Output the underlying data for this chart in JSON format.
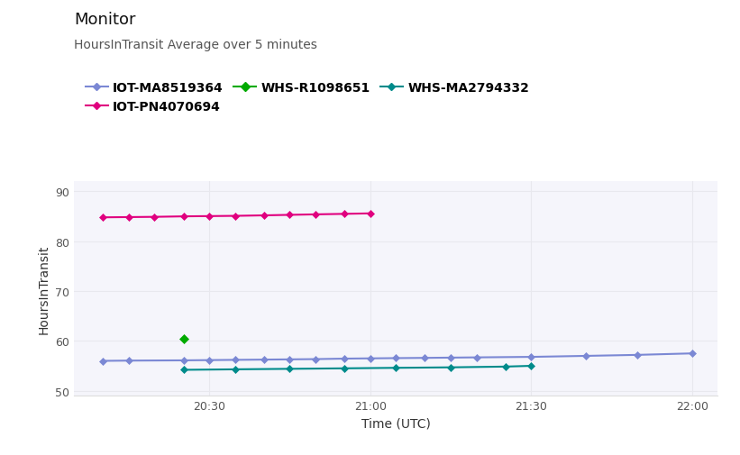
{
  "title": "Monitor",
  "subtitle": "HoursInTransit Average over 5 minutes",
  "xlabel": "Time (UTC)",
  "ylabel": "HoursInTransit",
  "ylim": [
    49,
    92
  ],
  "yticks": [
    50,
    60,
    70,
    80,
    90
  ],
  "background_color": "#ffffff",
  "plot_bg_color": "#f5f5fb",
  "grid_color": "#e8e8ee",
  "series": [
    {
      "label": "IOT-MA8519364",
      "color": "#7b88d4",
      "marker": "D",
      "markersize": 4,
      "x": [
        20.17,
        20.25,
        20.42,
        20.5,
        20.58,
        20.67,
        20.75,
        20.83,
        20.92,
        21.0,
        21.08,
        21.17,
        21.25,
        21.33,
        21.5,
        21.67,
        21.83,
        22.0
      ],
      "y": [
        56.0,
        56.05,
        56.1,
        56.15,
        56.2,
        56.25,
        56.3,
        56.35,
        56.45,
        56.5,
        56.55,
        56.6,
        56.65,
        56.7,
        56.8,
        57.0,
        57.2,
        57.5
      ]
    },
    {
      "label": "IOT-PN4070694",
      "color": "#e0007f",
      "marker": "D",
      "markersize": 4,
      "x": [
        20.17,
        20.25,
        20.33,
        20.42,
        20.5,
        20.58,
        20.67,
        20.75,
        20.83,
        20.92,
        21.0
      ],
      "y": [
        84.8,
        84.85,
        84.9,
        85.0,
        85.05,
        85.1,
        85.2,
        85.3,
        85.4,
        85.5,
        85.6
      ]
    },
    {
      "label": "WHS-R1098651",
      "color": "#00aa00",
      "marker": "D",
      "markersize": 5,
      "x": [
        20.42
      ],
      "y": [
        60.5
      ]
    },
    {
      "label": "WHS-MA2794332",
      "color": "#008b8b",
      "marker": "D",
      "markersize": 4,
      "x": [
        20.42,
        20.58,
        20.75,
        20.92,
        21.08,
        21.25,
        21.42,
        21.5
      ],
      "y": [
        54.2,
        54.3,
        54.4,
        54.5,
        54.6,
        54.7,
        54.85,
        55.0
      ]
    }
  ],
  "xtick_positions": [
    20.5,
    21.0,
    21.5,
    22.0
  ],
  "xtick_labels": [
    "20:30",
    "21:00",
    "21:30",
    "22:00"
  ],
  "xlim": [
    20.08,
    22.08
  ],
  "title_fontsize": 13,
  "subtitle_fontsize": 10,
  "axis_label_fontsize": 10,
  "tick_fontsize": 9,
  "legend_fontsize": 10
}
